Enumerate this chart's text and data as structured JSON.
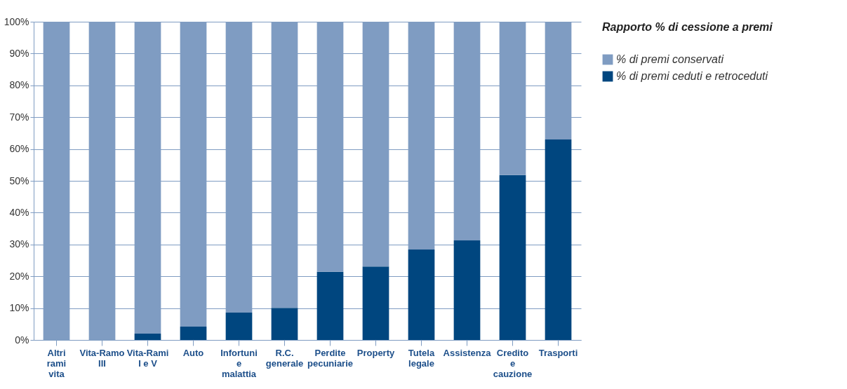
{
  "chart_data": {
    "type": "bar",
    "stacked": true,
    "categories": [
      "Altri rami vita",
      "Vita-Ramo III",
      "Vita-Rami I e V",
      "Auto",
      "Infortuni e malattia",
      "R.C. generale",
      "Perdite pecuniarie",
      "Property",
      "Tutela legale",
      "Assistenza",
      "Credito e cauzione",
      "Trasporti"
    ],
    "series": [
      {
        "name": "% di premi ceduti e retroceduti",
        "color": "#00467f",
        "values": [
          0,
          0,
          2,
          4.2,
          8.6,
          10.1,
          21.4,
          23.1,
          28.4,
          31.3,
          51.8,
          63
        ]
      },
      {
        "name": "% di premi conservati",
        "color": "#7f9cc2",
        "values": [
          100,
          100,
          98,
          95.8,
          91.4,
          89.9,
          78.6,
          76.9,
          71.6,
          68.7,
          48.2,
          37
        ]
      }
    ],
    "legend_title": "Rapporto % di cessione a premi",
    "legend": "top right",
    "ylim": [
      0,
      100
    ],
    "yticks": [
      {
        "value": 0,
        "label": "0%"
      },
      {
        "value": 10,
        "label": "10%"
      },
      {
        "value": 20,
        "label": "20%"
      },
      {
        "value": 30,
        "label": "30%"
      },
      {
        "value": 40,
        "label": "40%"
      },
      {
        "value": 50,
        "label": "50%"
      },
      {
        "value": 60,
        "label": "60%"
      },
      {
        "value": 70,
        "label": "70%"
      },
      {
        "value": 80,
        "label": "80%"
      },
      {
        "value": 90,
        "label": "90%"
      },
      {
        "value": 100,
        "label": "100%"
      }
    ],
    "grid": "y"
  }
}
